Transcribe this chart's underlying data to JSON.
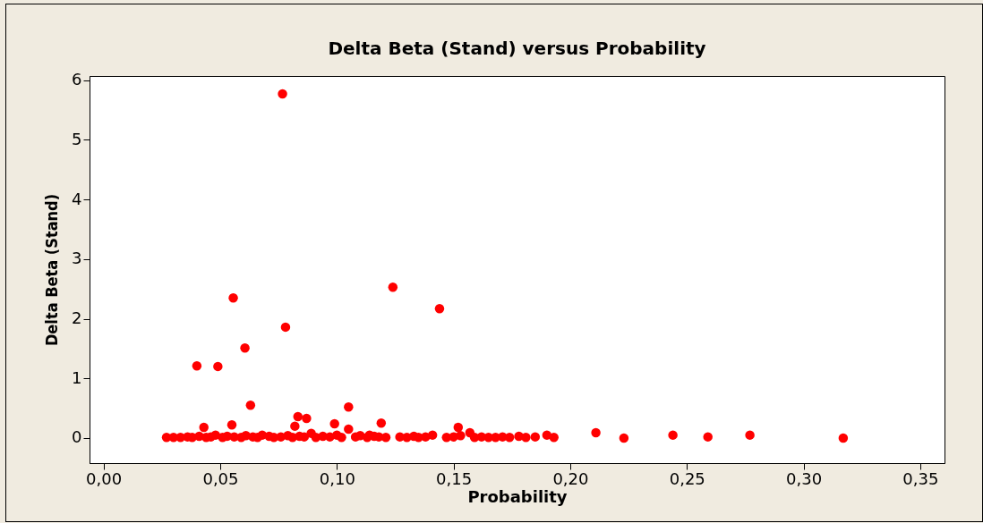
{
  "chart_data": {
    "type": "scatter",
    "title": "Delta Beta (Stand) versus Probability",
    "xlabel": "Probability",
    "ylabel": "Delta Beta (Stand)",
    "x": [
      0.0767,
      0.0556,
      0.124,
      0.144,
      0.078,
      0.0606,
      0.04,
      0.049,
      0.063,
      0.105,
      0.0833,
      0.087,
      0.082,
      0.055,
      0.043,
      0.099,
      0.105,
      0.119,
      0.152,
      0.157,
      0.114,
      0.211,
      0.223,
      0.244,
      0.259,
      0.277,
      0.317,
      0.027,
      0.03,
      0.033,
      0.036,
      0.038,
      0.041,
      0.044,
      0.046,
      0.048,
      0.051,
      0.053,
      0.056,
      0.059,
      0.061,
      0.064,
      0.066,
      0.068,
      0.071,
      0.073,
      0.076,
      0.079,
      0.081,
      0.084,
      0.086,
      0.089,
      0.091,
      0.094,
      0.097,
      0.1,
      0.102,
      0.108,
      0.11,
      0.113,
      0.116,
      0.118,
      0.121,
      0.127,
      0.13,
      0.133,
      0.135,
      0.138,
      0.141,
      0.147,
      0.15,
      0.153,
      0.159,
      0.162,
      0.165,
      0.168,
      0.171,
      0.174,
      0.178,
      0.181,
      0.185,
      0.19,
      0.193
    ],
    "series": [
      {
        "color": "#ff0000",
        "values": [
          5.77,
          2.35,
          2.53,
          2.17,
          1.86,
          1.51,
          1.21,
          1.2,
          0.55,
          0.52,
          0.36,
          0.33,
          0.2,
          0.22,
          0.18,
          0.24,
          0.15,
          0.25,
          0.18,
          0.09,
          0.05,
          0.09,
          0.0,
          0.05,
          0.02,
          0.05,
          0.0,
          0.01,
          0.01,
          0.01,
          0.02,
          0.01,
          0.03,
          0.01,
          0.02,
          0.05,
          0.01,
          0.03,
          0.02,
          0.01,
          0.04,
          0.02,
          0.01,
          0.05,
          0.03,
          0.01,
          0.02,
          0.04,
          0.01,
          0.03,
          0.02,
          0.08,
          0.01,
          0.03,
          0.02,
          0.05,
          0.01,
          0.02,
          0.04,
          0.01,
          0.03,
          0.02,
          0.01,
          0.02,
          0.01,
          0.03,
          0.01,
          0.02,
          0.05,
          0.01,
          0.02,
          0.04,
          0.01,
          0.02,
          0.01,
          0.01,
          0.02,
          0.01,
          0.03,
          0.01,
          0.02,
          0.05,
          0.01
        ]
      }
    ],
    "xlim": [
      -0.006,
      0.3604
    ],
    "xticks": [
      {
        "value": 0,
        "label": "0,00"
      },
      {
        "value": 0.05,
        "label": "0,05"
      },
      {
        "value": 0.1,
        "label": "0,10"
      },
      {
        "value": 0.15,
        "label": "0,15"
      },
      {
        "value": 0.2,
        "label": "0,20"
      },
      {
        "value": 0.25,
        "label": "0,25"
      },
      {
        "value": 0.3,
        "label": "0,30"
      },
      {
        "value": 0.35,
        "label": "0,35"
      }
    ],
    "ylim": [
      -0.42,
      6.07
    ],
    "yticks": [
      0,
      1,
      2,
      3,
      4,
      5,
      6
    ],
    "grid": false,
    "marker": "circle"
  }
}
